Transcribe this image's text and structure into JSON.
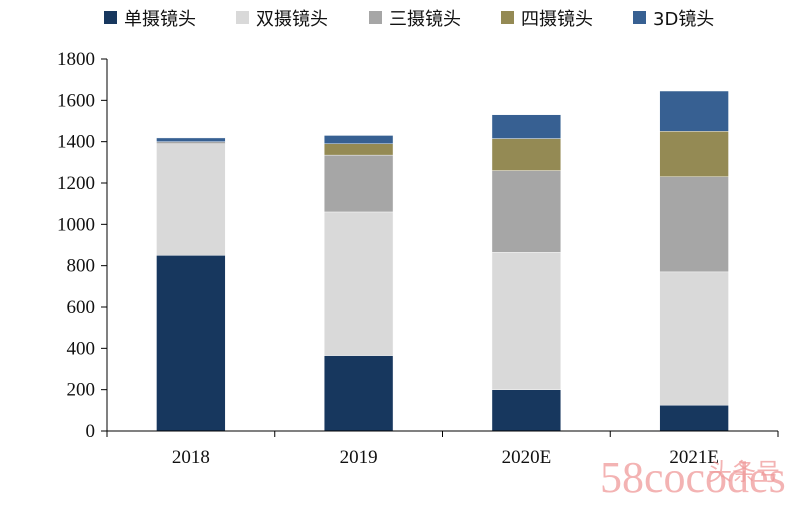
{
  "chart_data": {
    "type": "bar",
    "stacked": true,
    "categories": [
      "2018",
      "2019",
      "2020E",
      "2021E"
    ],
    "series": [
      {
        "name": "单摄镜头",
        "color": "#17375e",
        "values": [
          850,
          365,
          200,
          125
        ]
      },
      {
        "name": "双摄镜头",
        "color": "#d9d9d9",
        "values": [
          540,
          695,
          665,
          645
        ]
      },
      {
        "name": "三摄镜头",
        "color": "#a6a6a6",
        "values": [
          10,
          275,
          395,
          460
        ]
      },
      {
        "name": "四摄镜头",
        "color": "#948a54",
        "values": [
          0,
          55,
          155,
          220
        ]
      },
      {
        "name": "3D镜头",
        "color": "#376092",
        "values": [
          18,
          40,
          115,
          195
        ]
      }
    ],
    "ylim": [
      0,
      1800
    ],
    "yticks": [
      0,
      200,
      400,
      600,
      800,
      1000,
      1200,
      1400,
      1600,
      1800
    ],
    "legend_position": "top",
    "grid": false
  },
  "watermark": {
    "text": "58cocodes",
    "overlay_text": "头条号"
  }
}
